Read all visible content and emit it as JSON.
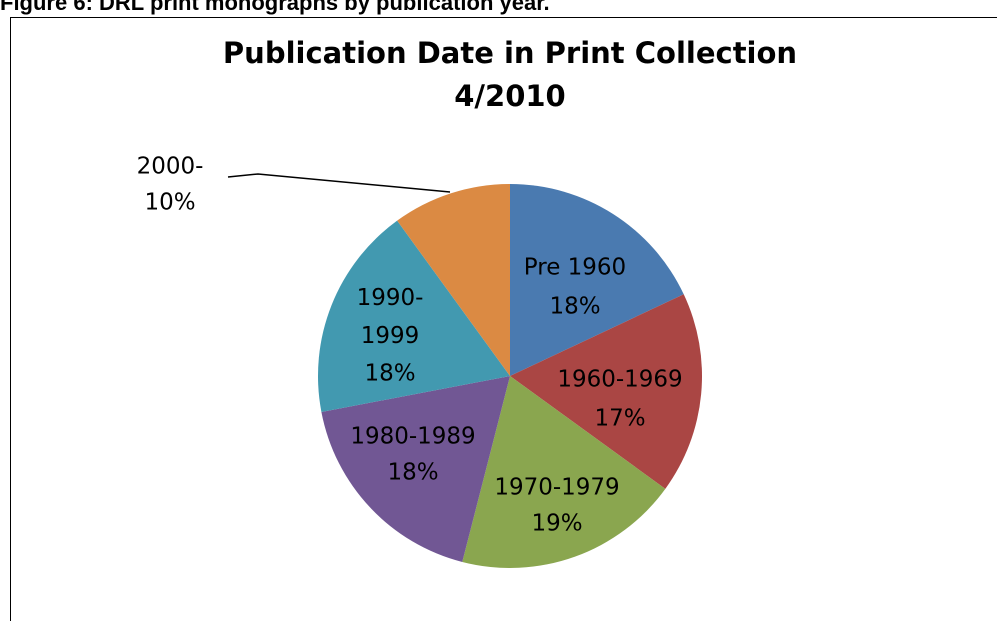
{
  "caption": "Figure 6: DRL print monographs by publication year.",
  "chart_data": {
    "type": "pie",
    "title": "Publication Date in Print Collection",
    "subtitle": "4/2010",
    "categories": [
      "Pre 1960",
      "1960-1969",
      "1970-1979",
      "1980-1989",
      "1990-1999",
      "2000-"
    ],
    "values": [
      18,
      17,
      19,
      18,
      18,
      10
    ],
    "value_labels": [
      "18%",
      "17%",
      "19%",
      "18%",
      "18%",
      "10%"
    ],
    "colors": [
      "#4a7ab0",
      "#aa4644",
      "#8aa64f",
      "#715794",
      "#4299b0",
      "#db8a43"
    ]
  }
}
